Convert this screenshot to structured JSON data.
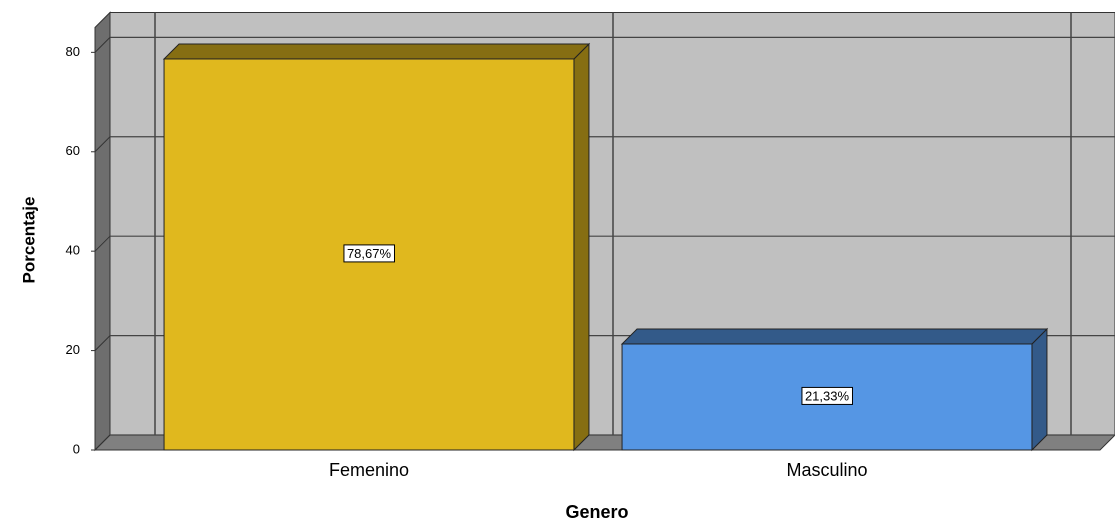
{
  "chart_data": {
    "type": "bar3d",
    "categories": [
      "Femenino",
      "Masculino"
    ],
    "values": [
      78.67,
      21.33
    ],
    "value_labels": [
      "78,67%",
      "21,33%"
    ],
    "colors": [
      "#e0b81e",
      "#5596e4"
    ],
    "xlabel": "Genero",
    "ylabel": "Porcentaje",
    "ylim": [
      0,
      85
    ],
    "yticks": [
      0,
      20,
      40,
      60,
      80
    ],
    "grid": true
  }
}
